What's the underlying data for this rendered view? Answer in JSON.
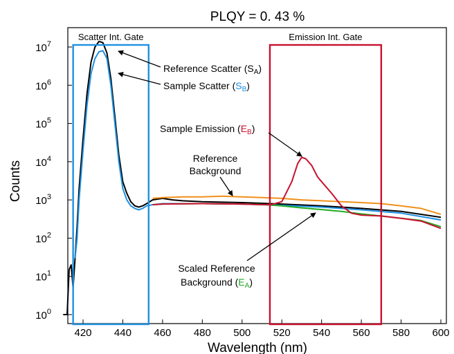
{
  "chart_data": {
    "type": "line",
    "title": "PLQY = 0. 43 %",
    "xlabel": "Wavelength (nm)",
    "ylabel": "Counts",
    "x_range": [
      410,
      600
    ],
    "x_ticks": [
      420,
      440,
      460,
      480,
      500,
      520,
      540,
      560,
      580,
      600
    ],
    "y_scale": "log",
    "y_range_exp": [
      0,
      7
    ],
    "y_ticks": [
      {
        "base": "10",
        "exp": "0"
      },
      {
        "base": "10",
        "exp": "1"
      },
      {
        "base": "10",
        "exp": "2"
      },
      {
        "base": "10",
        "exp": "3"
      },
      {
        "base": "10",
        "exp": "4"
      },
      {
        "base": "10",
        "exp": "5"
      },
      {
        "base": "10",
        "exp": "6"
      },
      {
        "base": "10",
        "exp": "7"
      }
    ],
    "grid": false,
    "series": [
      {
        "key": "ref_scatter",
        "color": "#000000",
        "x": [
          410,
          412,
          413,
          414,
          415,
          416,
          417,
          418,
          420,
          422,
          424,
          426,
          428,
          430,
          432,
          434,
          436,
          438,
          440,
          442,
          444,
          446,
          448,
          450,
          452,
          455,
          460,
          465,
          470,
          480,
          500,
          520,
          540,
          560,
          580,
          600
        ],
        "y": [
          1,
          1,
          15,
          20,
          5,
          30,
          200,
          2000,
          40000,
          600000,
          4000000,
          10000000,
          14000000,
          13000000,
          7000000,
          1500000,
          150000,
          15000,
          3000,
          1500,
          900,
          700,
          650,
          700,
          800,
          1000,
          1100,
          1000,
          950,
          900,
          850,
          780,
          700,
          600,
          500,
          350
        ]
      },
      {
        "key": "sample_scatter",
        "color": "#1e90e0",
        "x": [
          416,
          417,
          418,
          420,
          422,
          424,
          426,
          428,
          430,
          432,
          434,
          436,
          438,
          440,
          442,
          444,
          446,
          448,
          450,
          452,
          455,
          460,
          480,
          500,
          520,
          540,
          560,
          580,
          600
        ],
        "y": [
          30,
          100,
          1000,
          20000,
          300000,
          2000000,
          5000000,
          7500000,
          8000000,
          5000000,
          1000000,
          100000,
          10000,
          2000,
          1000,
          700,
          600,
          550,
          600,
          700,
          750,
          800,
          800,
          780,
          720,
          650,
          550,
          450,
          300
        ]
      },
      {
        "key": "ref_background",
        "color": "#f0901a",
        "x": [
          455,
          460,
          470,
          480,
          490,
          500,
          510,
          520,
          530,
          540,
          550,
          560,
          570,
          580,
          590,
          600
        ],
        "y": [
          1100,
          1150,
          1200,
          1200,
          1250,
          1200,
          1150,
          1100,
          1000,
          950,
          900,
          850,
          800,
          700,
          600,
          420
        ]
      },
      {
        "key": "scaled_ref_background",
        "color": "#22aa22",
        "x": [
          455,
          460,
          480,
          500,
          510,
          520,
          530,
          540,
          550,
          560,
          570,
          580,
          590,
          600
        ],
        "y": [
          750,
          780,
          800,
          780,
          760,
          700,
          620,
          560,
          500,
          430,
          380,
          330,
          290,
          200
        ]
      },
      {
        "key": "sample_emission",
        "color": "#c8102e",
        "x": [
          455,
          460,
          480,
          500,
          510,
          515,
          520,
          525,
          528,
          530,
          532,
          535,
          538,
          540,
          545,
          550,
          555,
          560,
          570,
          580,
          590,
          600
        ],
        "y": [
          750,
          780,
          800,
          780,
          750,
          760,
          900,
          3000,
          9000,
          13000,
          12000,
          8000,
          4000,
          3000,
          1500,
          700,
          450,
          400,
          380,
          330,
          280,
          180
        ]
      }
    ],
    "gates": [
      {
        "label": "Scatter Int. Gate",
        "color": "#1e90e0",
        "x": [
          415,
          453
        ]
      },
      {
        "label": "Emission Int. Gate",
        "color": "#c8102e",
        "x": [
          514,
          570
        ]
      }
    ],
    "annotations": [
      {
        "text": "Reference Scatter (",
        "sub_base": "S",
        "sub": "A",
        "sub_color": "#000000",
        "suffix": ")"
      },
      {
        "text": "Sample Scatter (",
        "sub_base": "S",
        "sub": "B",
        "sub_color": "#1e90e0",
        "suffix": ")"
      },
      {
        "text": "Sample Emission (",
        "sub_base": "E",
        "sub": "B",
        "sub_color": "#c8102e",
        "suffix": ")"
      },
      {
        "text": "Reference",
        "text2": "Background"
      },
      {
        "text": "Scaled Reference",
        "text2": "Background (",
        "sub_base": "E",
        "sub": "A",
        "sub_color": "#22aa22",
        "suffix": ")"
      }
    ]
  }
}
